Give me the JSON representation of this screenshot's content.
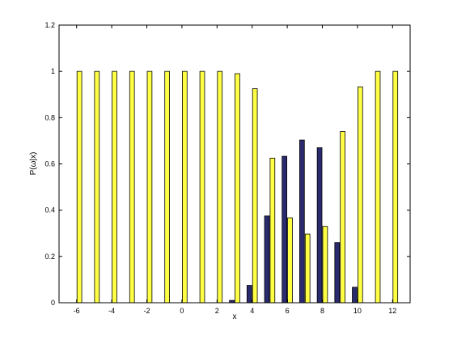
{
  "chart_data": {
    "type": "bar",
    "title": "",
    "xlabel": "x",
    "ylabel": "P(ω|x)",
    "xlim": [
      -7,
      13
    ],
    "ylim": [
      0,
      1.2
    ],
    "x_ticks": [
      "-6",
      "-4",
      "-2",
      "0",
      "2",
      "4",
      "6",
      "8",
      "10",
      "12"
    ],
    "y_ticks": [
      "0",
      "0.2",
      "0.4",
      "0.6",
      "0.8",
      "1",
      "1.2"
    ],
    "x": [
      -6,
      -5,
      -4,
      -3,
      -2,
      -1,
      0,
      1,
      2,
      3,
      4,
      5,
      6,
      7,
      8,
      9,
      10,
      11,
      12
    ],
    "series": [
      {
        "color": "#2a2a6e",
        "values": [
          0,
          0,
          0,
          0,
          0,
          0,
          0,
          0,
          0,
          0.01,
          0.075,
          0.375,
          0.633,
          0.703,
          0.67,
          0.26,
          0.067,
          0,
          0
        ]
      },
      {
        "color": "#ffff44",
        "values": [
          1,
          1,
          1,
          1,
          1,
          1,
          1,
          1,
          1,
          0.99,
          0.925,
          0.625,
          0.367,
          0.297,
          0.33,
          0.74,
          0.933,
          1,
          1
        ]
      }
    ],
    "grid": false,
    "legend": "none"
  }
}
